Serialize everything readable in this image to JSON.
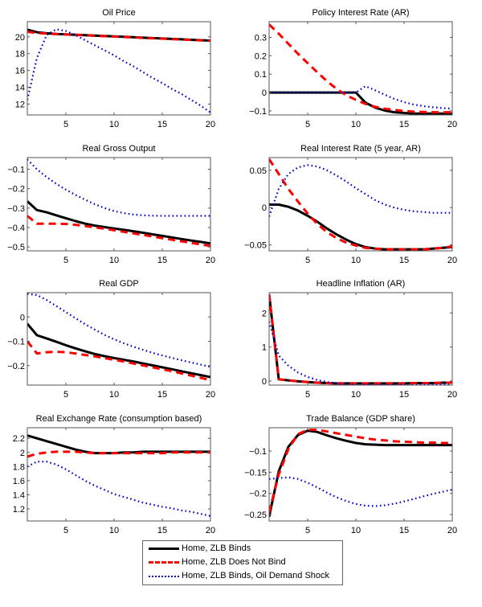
{
  "chart_data": [
    {
      "type": "line",
      "title": "Oil Price",
      "xlim": [
        1,
        20
      ],
      "ylim": [
        10.7,
        21.8
      ],
      "xticks": [
        5,
        10,
        15,
        20
      ],
      "yticks": [
        12,
        14,
        16,
        18,
        20
      ],
      "ytick_labels": [
        "12",
        "14",
        "16",
        "18",
        "20"
      ],
      "x": [
        1,
        2,
        3,
        4,
        5,
        6,
        7,
        8,
        9,
        10,
        11,
        12,
        13,
        14,
        15,
        16,
        17,
        18,
        19,
        20
      ],
      "series": [
        {
          "name": "Home, ZLB Binds",
          "values": [
            20.85,
            20.55,
            20.42,
            20.35,
            20.3,
            20.25,
            20.2,
            20.15,
            20.1,
            20.05,
            20.0,
            19.95,
            19.9,
            19.85,
            19.8,
            19.75,
            19.7,
            19.65,
            19.6,
            19.55
          ]
        },
        {
          "name": "Home, ZLB Does Not Bind",
          "values": [
            20.6,
            20.45,
            20.38,
            20.33,
            20.28,
            20.23,
            20.18,
            20.13,
            20.08,
            20.03,
            19.98,
            19.93,
            19.88,
            19.83,
            19.78,
            19.73,
            19.68,
            19.63,
            19.58,
            19.53
          ]
        },
        {
          "name": "Home, ZLB Binds, Oil Demand Shock",
          "values": [
            12.5,
            17.5,
            20.2,
            20.9,
            20.7,
            20.2,
            19.6,
            19.0,
            18.4,
            17.8,
            17.1,
            16.5,
            15.8,
            15.1,
            14.5,
            13.8,
            13.2,
            12.5,
            11.8,
            11.0
          ]
        }
      ]
    },
    {
      "type": "line",
      "title": "Policy Interest Rate (AR)",
      "xlim": [
        1,
        20
      ],
      "ylim": [
        -0.122,
        0.385
      ],
      "xticks": [
        5,
        10,
        15,
        20
      ],
      "yticks": [
        -0.1,
        0,
        0.1,
        0.2,
        0.3
      ],
      "ytick_labels": [
        "-0.1",
        "0",
        "0.1",
        "0.2",
        "0.3"
      ],
      "x": [
        1,
        2,
        3,
        4,
        5,
        6,
        7,
        8,
        9,
        10,
        11,
        12,
        13,
        14,
        15,
        16,
        17,
        18,
        19,
        20
      ],
      "series": [
        {
          "name": "Home, ZLB Binds",
          "values": [
            0,
            0,
            0,
            0,
            0,
            0,
            0,
            0,
            0,
            0,
            -0.055,
            -0.082,
            -0.098,
            -0.107,
            -0.111,
            -0.114,
            -0.114,
            -0.114,
            -0.114,
            -0.114
          ]
        },
        {
          "name": "Home, ZLB Does Not Bind",
          "values": [
            0.37,
            0.32,
            0.265,
            0.21,
            0.16,
            0.11,
            0.062,
            0.02,
            -0.015,
            -0.04,
            -0.062,
            -0.078,
            -0.088,
            -0.095,
            -0.1,
            -0.104,
            -0.106,
            -0.107,
            -0.107,
            -0.107
          ]
        },
        {
          "name": "Home, ZLB Binds, Oil Demand Shock",
          "values": [
            0,
            0,
            0,
            0,
            0,
            0,
            0,
            0,
            0,
            0,
            0.035,
            0.012,
            -0.012,
            -0.035,
            -0.052,
            -0.065,
            -0.074,
            -0.08,
            -0.085,
            -0.088
          ]
        }
      ]
    },
    {
      "type": "line",
      "title": "Real Gross Output",
      "xlim": [
        1,
        20
      ],
      "ylim": [
        -0.52,
        -0.04
      ],
      "xticks": [
        5,
        10,
        15,
        20
      ],
      "yticks": [
        -0.5,
        -0.4,
        -0.3,
        -0.2,
        -0.1
      ],
      "ytick_labels": [
        "-0.5",
        "-0.4",
        "-0.3",
        "-0.2",
        "-0.1"
      ],
      "x": [
        1,
        2,
        3,
        4,
        5,
        6,
        7,
        8,
        9,
        10,
        11,
        12,
        13,
        14,
        15,
        16,
        17,
        18,
        19,
        20
      ],
      "series": [
        {
          "name": "Home, ZLB Binds",
          "values": [
            -0.265,
            -0.31,
            -0.322,
            -0.337,
            -0.352,
            -0.367,
            -0.38,
            -0.39,
            -0.398,
            -0.405,
            -0.412,
            -0.419,
            -0.427,
            -0.435,
            -0.443,
            -0.451,
            -0.459,
            -0.467,
            -0.474,
            -0.482
          ]
        },
        {
          "name": "Home, ZLB Does Not Bind",
          "values": [
            -0.34,
            -0.38,
            -0.38,
            -0.38,
            -0.382,
            -0.386,
            -0.392,
            -0.399,
            -0.406,
            -0.414,
            -0.422,
            -0.43,
            -0.438,
            -0.446,
            -0.455,
            -0.463,
            -0.471,
            -0.479,
            -0.487,
            -0.495
          ]
        },
        {
          "name": "Home, ZLB Binds, Oil Demand Shock",
          "values": [
            -0.05,
            -0.1,
            -0.14,
            -0.175,
            -0.205,
            -0.232,
            -0.257,
            -0.28,
            -0.3,
            -0.315,
            -0.326,
            -0.333,
            -0.337,
            -0.339,
            -0.34,
            -0.34,
            -0.34,
            -0.34,
            -0.34,
            -0.34
          ]
        }
      ]
    },
    {
      "type": "line",
      "title": "Real Interest Rate (5 year, AR)",
      "xlim": [
        1,
        20
      ],
      "ylim": [
        -0.058,
        0.067
      ],
      "xticks": [
        5,
        10,
        15,
        20
      ],
      "yticks": [
        -0.05,
        0,
        0.05
      ],
      "ytick_labels": [
        "-0.05",
        "0",
        "0.05"
      ],
      "x": [
        1,
        2,
        3,
        4,
        5,
        6,
        7,
        8,
        9,
        10,
        11,
        12,
        13,
        14,
        15,
        16,
        17,
        18,
        19,
        20
      ],
      "series": [
        {
          "name": "Home, ZLB Binds",
          "values": [
            0.004,
            0.004,
            0.001,
            -0.004,
            -0.011,
            -0.019,
            -0.028,
            -0.036,
            -0.043,
            -0.049,
            -0.053,
            -0.055,
            -0.056,
            -0.056,
            -0.056,
            -0.056,
            -0.056,
            -0.055,
            -0.054,
            -0.053
          ]
        },
        {
          "name": "Home, ZLB Does Not Bind",
          "values": [
            0.065,
            0.045,
            0.025,
            0.008,
            -0.008,
            -0.022,
            -0.033,
            -0.041,
            -0.047,
            -0.051,
            -0.054,
            -0.055,
            -0.056,
            -0.056,
            -0.056,
            -0.056,
            -0.056,
            -0.055,
            -0.054,
            -0.052
          ]
        },
        {
          "name": "Home, ZLB Binds, Oil Demand Shock",
          "values": [
            -0.012,
            0.025,
            0.045,
            0.054,
            0.057,
            0.055,
            0.05,
            0.043,
            0.035,
            0.026,
            0.018,
            0.01,
            0.004,
            0.0,
            -0.003,
            -0.005,
            -0.006,
            -0.007,
            -0.007,
            -0.007
          ]
        }
      ]
    },
    {
      "type": "line",
      "title": "Real GDP",
      "xlim": [
        1,
        20
      ],
      "ylim": [
        -0.28,
        0.1
      ],
      "xticks": [
        5,
        10,
        15,
        20
      ],
      "yticks": [
        -0.2,
        -0.1,
        0
      ],
      "ytick_labels": [
        "-0.2",
        "-0.1",
        "0"
      ],
      "x": [
        1,
        2,
        3,
        4,
        5,
        6,
        7,
        8,
        9,
        10,
        11,
        12,
        13,
        14,
        15,
        16,
        17,
        18,
        19,
        20
      ],
      "series": [
        {
          "name": "Home, ZLB Binds",
          "values": [
            -0.028,
            -0.075,
            -0.088,
            -0.102,
            -0.116,
            -0.129,
            -0.141,
            -0.152,
            -0.161,
            -0.169,
            -0.176,
            -0.183,
            -0.191,
            -0.199,
            -0.207,
            -0.215,
            -0.223,
            -0.231,
            -0.239,
            -0.247
          ]
        },
        {
          "name": "Home, ZLB Does Not Bind",
          "values": [
            -0.1,
            -0.15,
            -0.145,
            -0.143,
            -0.145,
            -0.15,
            -0.156,
            -0.162,
            -0.169,
            -0.176,
            -0.183,
            -0.191,
            -0.199,
            -0.207,
            -0.215,
            -0.223,
            -0.232,
            -0.241,
            -0.25,
            -0.26
          ]
        },
        {
          "name": "Home, ZLB Binds, Oil Demand Shock",
          "values": [
            0.095,
            0.09,
            0.07,
            0.045,
            0.02,
            -0.005,
            -0.03,
            -0.052,
            -0.073,
            -0.092,
            -0.108,
            -0.122,
            -0.135,
            -0.147,
            -0.158,
            -0.168,
            -0.178,
            -0.187,
            -0.196,
            -0.205
          ]
        }
      ]
    },
    {
      "type": "line",
      "title": "Headline Inflation (AR)",
      "xlim": [
        1,
        20
      ],
      "ylim": [
        -0.12,
        2.6
      ],
      "xticks": [
        5,
        10,
        15,
        20
      ],
      "yticks": [
        0,
        1,
        2
      ],
      "ytick_labels": [
        "0",
        "1",
        "2"
      ],
      "x": [
        1,
        2,
        3,
        4,
        5,
        6,
        7,
        8,
        9,
        10,
        11,
        12,
        13,
        14,
        15,
        16,
        17,
        18,
        19,
        20
      ],
      "series": [
        {
          "name": "Home, ZLB Binds",
          "values": [
            2.55,
            0.05,
            0.02,
            -0.01,
            -0.03,
            -0.05,
            -0.06,
            -0.07,
            -0.07,
            -0.07,
            -0.07,
            -0.07,
            -0.07,
            -0.07,
            -0.07,
            -0.06,
            -0.06,
            -0.06,
            -0.05,
            -0.05
          ]
        },
        {
          "name": "Home, ZLB Does Not Bind",
          "values": [
            2.55,
            0.05,
            0.02,
            -0.01,
            -0.03,
            -0.05,
            -0.06,
            -0.07,
            -0.07,
            -0.07,
            -0.07,
            -0.07,
            -0.07,
            -0.07,
            -0.07,
            -0.06,
            -0.06,
            -0.06,
            -0.05,
            -0.05
          ]
        },
        {
          "name": "Home, ZLB Binds, Oil Demand Shock",
          "values": [
            1.75,
            0.75,
            0.45,
            0.25,
            0.12,
            0.03,
            -0.03,
            -0.07,
            -0.09,
            -0.1,
            -0.1,
            -0.1,
            -0.1,
            -0.1,
            -0.1,
            -0.1,
            -0.1,
            -0.1,
            -0.1,
            -0.1
          ]
        }
      ]
    },
    {
      "type": "line",
      "title": "Real Exchange Rate (consumption based)",
      "xlim": [
        1,
        20
      ],
      "ylim": [
        1.03,
        2.35
      ],
      "xticks": [
        5,
        10,
        15,
        20
      ],
      "yticks": [
        1.2,
        1.4,
        1.6,
        1.8,
        2,
        2.2
      ],
      "ytick_labels": [
        "1.2",
        "1.4",
        "1.6",
        "1.8",
        "2",
        "2.2"
      ],
      "x": [
        1,
        2,
        3,
        4,
        5,
        6,
        7,
        8,
        9,
        10,
        11,
        12,
        13,
        14,
        15,
        16,
        17,
        18,
        19,
        20
      ],
      "series": [
        {
          "name": "Home, ZLB Binds",
          "values": [
            2.24,
            2.2,
            2.16,
            2.12,
            2.08,
            2.04,
            2.01,
            1.99,
            1.99,
            1.99,
            2.0,
            2.0,
            2.01,
            2.01,
            2.01,
            2.01,
            2.01,
            2.01,
            2.01,
            2.01
          ]
        },
        {
          "name": "Home, ZLB Does Not Bind",
          "values": [
            1.94,
            1.98,
            2.0,
            2.01,
            2.01,
            2.01,
            2.0,
            1.99,
            1.99,
            1.99,
            1.99,
            1.99,
            1.99,
            1.99,
            1.99,
            2.0,
            2.0,
            2.0,
            2.0,
            2.0
          ]
        },
        {
          "name": "Home, ZLB Binds, Oil Demand Shock",
          "values": [
            1.8,
            1.87,
            1.87,
            1.83,
            1.76,
            1.68,
            1.6,
            1.53,
            1.47,
            1.41,
            1.37,
            1.33,
            1.29,
            1.26,
            1.23,
            1.21,
            1.18,
            1.16,
            1.13,
            1.1
          ]
        }
      ]
    },
    {
      "type": "line",
      "title": "Trade Balance (GDP share)",
      "xlim": [
        1,
        20
      ],
      "ylim": [
        -0.265,
        -0.045
      ],
      "xticks": [
        5,
        10,
        15,
        20
      ],
      "yticks": [
        -0.25,
        -0.2,
        -0.15,
        -0.1
      ],
      "ytick_labels": [
        "-0.25",
        "-0.2",
        "-0.15",
        "-0.1"
      ],
      "x": [
        1,
        2,
        3,
        4,
        5,
        6,
        7,
        8,
        9,
        10,
        11,
        12,
        13,
        14,
        15,
        16,
        17,
        18,
        19,
        20
      ],
      "series": [
        {
          "name": "Home, ZLB Binds",
          "values": [
            -0.255,
            -0.148,
            -0.09,
            -0.062,
            -0.052,
            -0.055,
            -0.063,
            -0.07,
            -0.076,
            -0.081,
            -0.084,
            -0.085,
            -0.086,
            -0.086,
            -0.086,
            -0.086,
            -0.086,
            -0.086,
            -0.086,
            -0.086
          ]
        },
        {
          "name": "Home, ZLB Does Not Bind",
          "values": [
            -0.245,
            -0.155,
            -0.095,
            -0.06,
            -0.05,
            -0.05,
            -0.054,
            -0.058,
            -0.062,
            -0.066,
            -0.07,
            -0.073,
            -0.075,
            -0.077,
            -0.078,
            -0.079,
            -0.08,
            -0.08,
            -0.081,
            -0.081
          ]
        },
        {
          "name": "Home, ZLB Binds, Oil Demand Shock",
          "values": [
            -0.166,
            -0.164,
            -0.162,
            -0.166,
            -0.175,
            -0.186,
            -0.198,
            -0.209,
            -0.218,
            -0.225,
            -0.229,
            -0.23,
            -0.228,
            -0.224,
            -0.219,
            -0.213,
            -0.207,
            -0.201,
            -0.196,
            -0.191
          ]
        }
      ]
    }
  ],
  "series_styles": [
    {
      "name": "Home, ZLB Binds",
      "color": "#000000",
      "style": "solid"
    },
    {
      "name": "Home, ZLB Does Not Bind",
      "color": "#ff0000",
      "style": "dashed"
    },
    {
      "name": "Home, ZLB Binds, Oil Demand Shock",
      "color": "#0000cc",
      "style": "dotted"
    }
  ],
  "legend": {
    "placement": "bottom-center",
    "items": [
      {
        "label": "Home, ZLB Binds"
      },
      {
        "label": "Home, ZLB Does Not Bind"
      },
      {
        "label": "Home, ZLB Binds, Oil Demand Shock"
      }
    ]
  }
}
